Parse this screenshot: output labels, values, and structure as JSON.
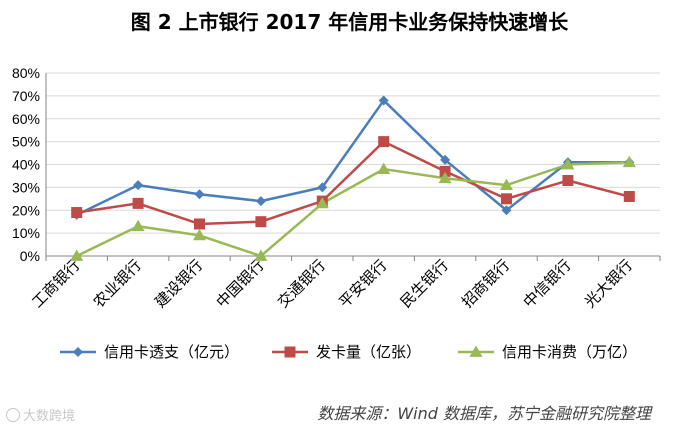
{
  "title": "图 2  上市银行 2017 年信用卡业务保持快速增长",
  "source_note": "数据来源：Wind 数据库，苏宁金融研究院整理",
  "watermark": "大数跨境",
  "colors": {
    "series_blue": "#4a7ebb",
    "series_red": "#be4b48",
    "series_green": "#98b954",
    "grid": "#d9d9d9",
    "axis": "#868686"
  },
  "chart_data": {
    "type": "line",
    "categories": [
      "工商银行",
      "农业银行",
      "建设银行",
      "中国银行",
      "交通银行",
      "平安银行",
      "民生银行",
      "招商银行",
      "中信银行",
      "光大银行"
    ],
    "y_ticks": [
      "0%",
      "10%",
      "20%",
      "30%",
      "40%",
      "50%",
      "60%",
      "70%",
      "80%"
    ],
    "ylim": [
      0,
      80
    ],
    "y_unit": "%",
    "grid": true,
    "legend_position": "bottom",
    "series": [
      {
        "name": "信用卡透支（亿元）",
        "marker": "diamond",
        "color": "#4a7ebb",
        "values": [
          18,
          31,
          27,
          24,
          30,
          68,
          42,
          20,
          41,
          41
        ]
      },
      {
        "name": "发卡量（亿张）",
        "marker": "square",
        "color": "#be4b48",
        "values": [
          19,
          23,
          14,
          15,
          24,
          50,
          37,
          25,
          33,
          26
        ]
      },
      {
        "name": "信用卡消费（万亿）",
        "marker": "triangle",
        "color": "#98b954",
        "values": [
          0,
          13,
          9,
          0,
          23,
          38,
          34,
          31,
          40,
          41
        ]
      }
    ]
  }
}
